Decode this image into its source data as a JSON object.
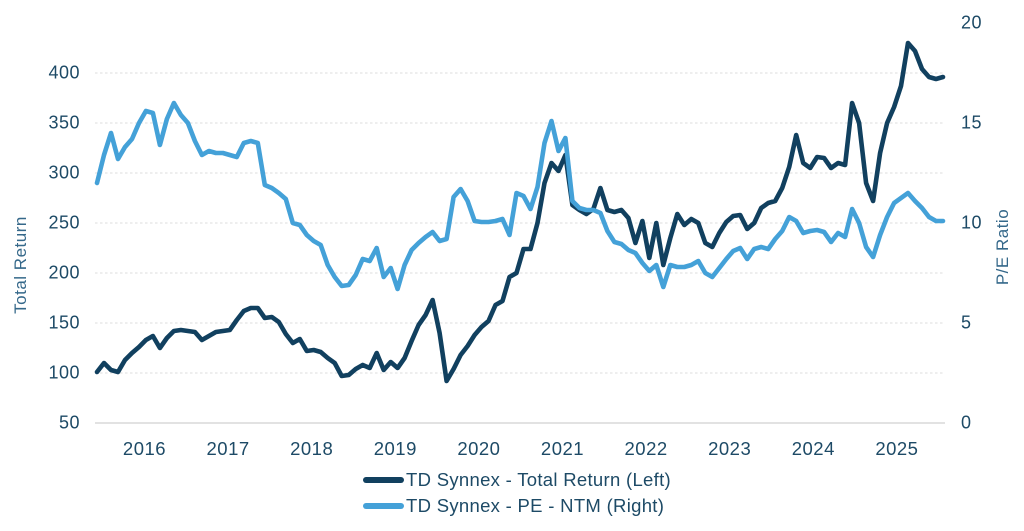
{
  "chart_data": {
    "type": "line",
    "title": "",
    "ylabel_left": "Total Return",
    "ylabel_right": "P/E Ratio",
    "x_tick_labels": [
      "2016",
      "2017",
      "2018",
      "2019",
      "2020",
      "2021",
      "2022",
      "2023",
      "2024",
      "2025"
    ],
    "y_left_ticks": [
      50,
      100,
      150,
      200,
      250,
      300,
      350,
      400
    ],
    "y_left_range": [
      50,
      400
    ],
    "y_right_ticks": [
      0,
      5,
      10,
      15,
      20
    ],
    "y_right_range": [
      0,
      20
    ],
    "grid": "horizontal only, light dashed",
    "legend_position": "bottom-center",
    "colors": {
      "total_return_line": "#11405f",
      "pe_line": "#44a1d8",
      "gridline": "#e4e4e4",
      "axis_baseline": "#d9d9d9",
      "tick_text": "#1d4a66",
      "axis_title_text": "#35688a"
    },
    "series": [
      {
        "name": "TD Synnex - Total Return (Left)",
        "axis": "left",
        "color": "#11405f",
        "values": [
          101,
          110,
          103,
          101,
          113,
          120,
          126,
          133,
          137,
          125,
          135,
          142,
          143,
          142,
          141,
          133,
          137,
          141,
          142,
          143,
          153,
          162,
          165,
          165,
          155,
          156,
          151,
          139,
          130,
          134,
          122,
          123,
          121,
          115,
          110,
          97,
          98,
          104,
          108,
          105,
          120,
          103,
          111,
          105,
          115,
          132,
          148,
          158,
          173,
          140,
          92,
          104,
          118,
          127,
          138,
          146,
          152,
          168,
          172,
          196,
          200,
          224,
          224,
          250,
          290,
          310,
          302,
          318,
          268,
          263,
          259,
          264,
          285,
          263,
          261,
          263,
          255,
          230,
          252,
          215,
          250,
          208,
          235,
          259,
          248,
          254,
          250,
          230,
          226,
          240,
          251,
          257,
          258,
          244,
          250,
          265,
          270,
          272,
          285,
          306,
          338,
          310,
          305,
          316,
          315,
          305,
          310,
          308,
          370,
          350,
          290,
          272,
          320,
          350,
          366,
          387,
          430,
          422,
          404,
          396,
          394,
          396
        ]
      },
      {
        "name": "TD Synnex - PE - NTM (Right)",
        "axis": "right",
        "color": "#44a1d8",
        "values": [
          12.0,
          13.4,
          14.5,
          13.2,
          13.8,
          14.2,
          15.0,
          15.6,
          15.5,
          13.9,
          15.2,
          16.0,
          15.4,
          15.0,
          14.1,
          13.4,
          13.6,
          13.5,
          13.5,
          13.4,
          13.3,
          14.0,
          14.1,
          14.0,
          11.9,
          11.75,
          11.5,
          11.2,
          10.0,
          9.9,
          9.4,
          9.1,
          8.9,
          7.9,
          7.3,
          6.85,
          6.9,
          7.4,
          8.2,
          8.1,
          8.75,
          7.3,
          7.75,
          6.7,
          7.9,
          8.65,
          9.0,
          9.3,
          9.55,
          9.1,
          9.2,
          11.3,
          11.7,
          11.1,
          10.1,
          10.05,
          10.05,
          10.1,
          10.2,
          9.4,
          11.5,
          11.35,
          10.7,
          11.8,
          14.0,
          15.1,
          13.6,
          14.25,
          11.1,
          10.75,
          10.65,
          10.65,
          10.5,
          9.6,
          9.05,
          8.95,
          8.65,
          8.5,
          8.0,
          7.6,
          7.9,
          6.8,
          7.9,
          7.8,
          7.8,
          7.9,
          8.1,
          7.5,
          7.3,
          7.75,
          8.2,
          8.6,
          8.75,
          8.2,
          8.7,
          8.8,
          8.7,
          9.2,
          9.6,
          10.3,
          10.1,
          9.5,
          9.6,
          9.65,
          9.55,
          9.05,
          9.5,
          9.3,
          10.7,
          10.0,
          8.8,
          8.3,
          9.4,
          10.3,
          11.0,
          11.25,
          11.5,
          11.1,
          10.75,
          10.3,
          10.1,
          10.1
        ]
      }
    ]
  },
  "legend": {
    "items": [
      {
        "label": "TD Synnex - Total Return (Left)",
        "color": "#11405f"
      },
      {
        "label": "TD Synnex - PE - NTM (Right)",
        "color": "#44a1d8"
      }
    ]
  }
}
